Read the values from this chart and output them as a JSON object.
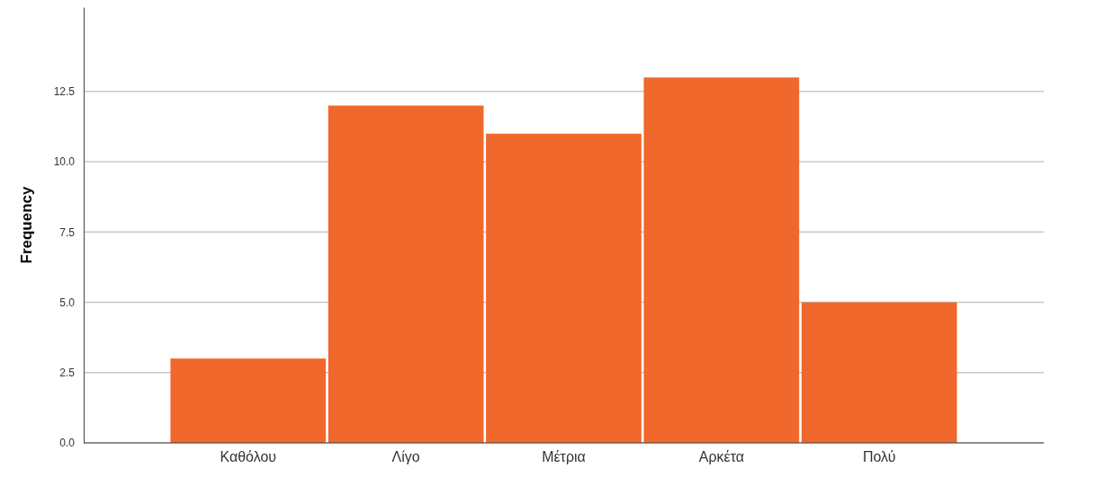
{
  "chart_data": {
    "type": "bar",
    "ylabel": "Frequency",
    "categories": [
      "Καθόλου",
      "Λίγο",
      "Μέτρια",
      "Αρκέτα",
      "Πολύ"
    ],
    "values": [
      3,
      12,
      11,
      13,
      5
    ],
    "color": "#f0682c",
    "ylim": [
      0,
      15.5
    ],
    "yticks": [
      {
        "value": 0,
        "label": "0.0"
      },
      {
        "value": 2.5,
        "label": "2.5"
      },
      {
        "value": 5,
        "label": "5.0"
      },
      {
        "value": 7.5,
        "label": "7.5"
      },
      {
        "value": 10,
        "label": "10.0"
      },
      {
        "value": 12.5,
        "label": "12.5"
      }
    ],
    "grid": "y"
  }
}
